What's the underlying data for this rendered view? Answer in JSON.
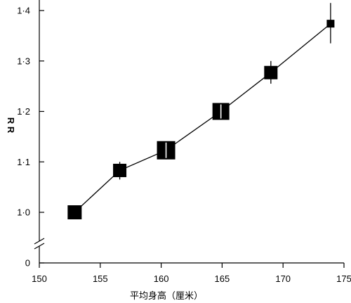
{
  "chart_data": {
    "type": "scatter",
    "title": "",
    "xlabel": "平均身高（厘米）",
    "ylabel": "R R",
    "xlim": [
      150,
      175
    ],
    "ylim": [
      1.0,
      1.4
    ],
    "y_axis_has_zero_break": true,
    "y_zero_label": "0",
    "grid": false,
    "legend": "none",
    "x_ticks": [
      {
        "value": 150,
        "label": "150"
      },
      {
        "value": 155,
        "label": "155"
      },
      {
        "value": 160,
        "label": "160"
      },
      {
        "value": 165,
        "label": "165"
      },
      {
        "value": 170,
        "label": "170"
      },
      {
        "value": 175,
        "label": "175"
      }
    ],
    "y_ticks": [
      {
        "value": 1.0,
        "label": "1·0"
      },
      {
        "value": 1.1,
        "label": "1·1"
      },
      {
        "value": 1.2,
        "label": "1·2"
      },
      {
        "value": 1.3,
        "label": "1·3"
      },
      {
        "value": 1.4,
        "label": "1·4"
      }
    ],
    "series": [
      {
        "points": [
          {
            "x": 152.9,
            "y": 1.0,
            "ci_low": 0.995,
            "ci_high": 1.005,
            "weight": 1.0
          },
          {
            "x": 156.6,
            "y": 1.083,
            "ci_low": 1.065,
            "ci_high": 1.1,
            "weight": 0.95
          },
          {
            "x": 160.4,
            "y": 1.123,
            "ci_low": 1.105,
            "ci_high": 1.14,
            "weight": 1.3
          },
          {
            "x": 164.9,
            "y": 1.2,
            "ci_low": 1.185,
            "ci_high": 1.215,
            "weight": 1.2
          },
          {
            "x": 169.0,
            "y": 1.277,
            "ci_low": 1.255,
            "ci_high": 1.3,
            "weight": 0.95
          },
          {
            "x": 173.9,
            "y": 1.374,
            "ci_low": 1.335,
            "ci_high": 1.415,
            "weight": 0.55
          }
        ]
      }
    ],
    "colors": {
      "marker": "#000000",
      "line": "#000000",
      "axis": "#000000"
    }
  }
}
